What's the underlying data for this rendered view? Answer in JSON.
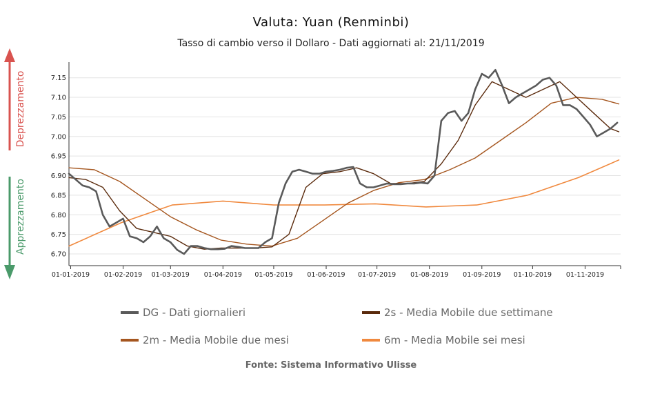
{
  "page": {
    "title": "Valuta: Yuan (Renminbi)",
    "subtitle": "Tasso di cambio verso il Dollaro - Dati aggiornati al: 21/11/2019",
    "side_up": "Deprezzamento",
    "side_down": "Apprezzamento",
    "source": "Fonte: Sistema Informativo Ulisse",
    "colors": {
      "up_arrow": "#d9534f",
      "down_arrow": "#4a9a6a"
    }
  },
  "chart_data": {
    "type": "line",
    "title": "Valuta: Yuan (Renminbi)",
    "subtitle": "Tasso di cambio verso il Dollaro - Dati aggiornati al: 21/11/2019",
    "xlabel": "",
    "ylabel": "",
    "ylim": [
      6.67,
      7.19
    ],
    "xlim": [
      "2018-12-31",
      "2019-11-22"
    ],
    "yticks": [
      6.7,
      6.75,
      6.8,
      6.85,
      6.9,
      6.95,
      7.0,
      7.05,
      7.1,
      7.15
    ],
    "xtick_labels": [
      {
        "date": "2019-01-01",
        "label": "01-01-2019"
      },
      {
        "date": "2019-02-01",
        "label": "01-02-2019"
      },
      {
        "date": "2019-03-01",
        "label": "01-03-2019"
      },
      {
        "date": "2019-04-01",
        "label": "01-04-2019"
      },
      {
        "date": "2019-05-01",
        "label": "01-05-2019"
      },
      {
        "date": "2019-06-01",
        "label": "01-06-2019"
      },
      {
        "date": "2019-07-01",
        "label": "01-07-2019"
      },
      {
        "date": "2019-08-01",
        "label": "01-08-2019"
      },
      {
        "date": "2019-09-01",
        "label": "01-09-2019"
      },
      {
        "date": "2019-10-01",
        "label": "01-10-2019"
      },
      {
        "date": "2019-11-01",
        "label": "01-11-2019"
      }
    ],
    "grid": "horizontal",
    "legend_position": "bottom",
    "series": [
      {
        "name": "DG - Dati giornalieri",
        "color": "#5a5a5a",
        "x": [
          "2018-12-31",
          "2019-01-04",
          "2019-01-08",
          "2019-01-12",
          "2019-01-16",
          "2019-01-20",
          "2019-01-24",
          "2019-01-28",
          "2019-02-01",
          "2019-02-05",
          "2019-02-09",
          "2019-02-13",
          "2019-02-17",
          "2019-02-21",
          "2019-02-25",
          "2019-03-01",
          "2019-03-05",
          "2019-03-09",
          "2019-03-13",
          "2019-03-17",
          "2019-03-21",
          "2019-03-25",
          "2019-03-29",
          "2019-04-02",
          "2019-04-06",
          "2019-04-10",
          "2019-04-14",
          "2019-04-18",
          "2019-04-22",
          "2019-04-26",
          "2019-04-30",
          "2019-05-04",
          "2019-05-08",
          "2019-05-12",
          "2019-05-16",
          "2019-05-20",
          "2019-05-24",
          "2019-05-28",
          "2019-06-01",
          "2019-06-05",
          "2019-06-09",
          "2019-06-13",
          "2019-06-17",
          "2019-06-21",
          "2019-06-25",
          "2019-06-29",
          "2019-07-03",
          "2019-07-07",
          "2019-07-11",
          "2019-07-15",
          "2019-07-19",
          "2019-07-23",
          "2019-07-27",
          "2019-07-31",
          "2019-08-04",
          "2019-08-08",
          "2019-08-12",
          "2019-08-16",
          "2019-08-20",
          "2019-08-24",
          "2019-08-28",
          "2019-09-01",
          "2019-09-05",
          "2019-09-09",
          "2019-09-13",
          "2019-09-17",
          "2019-09-21",
          "2019-09-25",
          "2019-09-29",
          "2019-10-03",
          "2019-10-07",
          "2019-10-11",
          "2019-10-15",
          "2019-10-19",
          "2019-10-23",
          "2019-10-27",
          "2019-10-31",
          "2019-11-04",
          "2019-11-08",
          "2019-11-12",
          "2019-11-16",
          "2019-11-20"
        ],
        "values": [
          6.905,
          6.89,
          6.875,
          6.87,
          6.86,
          6.8,
          6.77,
          6.78,
          6.79,
          6.745,
          6.74,
          6.73,
          6.745,
          6.77,
          6.74,
          6.73,
          6.71,
          6.7,
          6.72,
          6.72,
          6.715,
          6.712,
          6.712,
          6.713,
          6.72,
          6.718,
          6.715,
          6.715,
          6.715,
          6.73,
          6.74,
          6.83,
          6.88,
          6.91,
          6.915,
          6.91,
          6.905,
          6.905,
          6.91,
          6.912,
          6.915,
          6.92,
          6.922,
          6.88,
          6.87,
          6.87,
          6.875,
          6.88,
          6.878,
          6.878,
          6.88,
          6.88,
          6.882,
          6.88,
          6.9,
          7.04,
          7.06,
          7.065,
          7.04,
          7.06,
          7.12,
          7.16,
          7.15,
          7.17,
          7.13,
          7.085,
          7.1,
          7.11,
          7.12,
          7.13,
          7.145,
          7.15,
          7.13,
          7.08,
          7.08,
          7.07,
          7.05,
          7.03,
          7.0,
          7.01,
          7.02,
          7.035
        ]
      },
      {
        "name": "2s - Media Mobile due settimane",
        "color": "#5a2a0c",
        "x": [
          "2018-12-31",
          "2019-01-10",
          "2019-01-20",
          "2019-01-30",
          "2019-02-09",
          "2019-02-19",
          "2019-03-01",
          "2019-03-11",
          "2019-03-21",
          "2019-03-31",
          "2019-04-10",
          "2019-04-20",
          "2019-04-30",
          "2019-05-10",
          "2019-05-20",
          "2019-05-30",
          "2019-06-09",
          "2019-06-19",
          "2019-06-29",
          "2019-07-09",
          "2019-07-19",
          "2019-07-29",
          "2019-08-08",
          "2019-08-18",
          "2019-08-28",
          "2019-09-07",
          "2019-09-17",
          "2019-09-27",
          "2019-10-07",
          "2019-10-17",
          "2019-10-27",
          "2019-11-06",
          "2019-11-16",
          "2019-11-21"
        ],
        "values": [
          6.895,
          6.89,
          6.87,
          6.81,
          6.765,
          6.755,
          6.745,
          6.72,
          6.712,
          6.715,
          6.715,
          6.715,
          6.718,
          6.75,
          6.87,
          6.905,
          6.91,
          6.92,
          6.905,
          6.88,
          6.88,
          6.885,
          6.93,
          6.99,
          7.08,
          7.14,
          7.12,
          7.1,
          7.12,
          7.14,
          7.1,
          7.06,
          7.02,
          7.012
        ]
      },
      {
        "name": "2m - Media Mobile due mesi",
        "color": "#a5561f",
        "x": [
          "2018-12-31",
          "2019-01-15",
          "2019-01-30",
          "2019-02-14",
          "2019-03-01",
          "2019-03-16",
          "2019-03-31",
          "2019-04-15",
          "2019-04-30",
          "2019-05-15",
          "2019-05-30",
          "2019-06-14",
          "2019-06-29",
          "2019-07-14",
          "2019-07-29",
          "2019-08-13",
          "2019-08-28",
          "2019-09-12",
          "2019-09-27",
          "2019-10-12",
          "2019-10-27",
          "2019-11-11",
          "2019-11-21"
        ],
        "values": [
          6.92,
          6.915,
          6.885,
          6.84,
          6.795,
          6.762,
          6.735,
          6.725,
          6.72,
          6.74,
          6.785,
          6.83,
          6.862,
          6.882,
          6.89,
          6.915,
          6.945,
          6.99,
          7.035,
          7.085,
          7.1,
          7.095,
          7.083
        ]
      },
      {
        "name": "6m - Media Mobile sei mesi",
        "color": "#f0893e",
        "x": [
          "2018-12-31",
          "2019-01-31",
          "2019-03-02",
          "2019-04-01",
          "2019-05-01",
          "2019-05-31",
          "2019-06-30",
          "2019-07-30",
          "2019-08-29",
          "2019-09-28",
          "2019-10-28",
          "2019-11-21"
        ],
        "values": [
          6.72,
          6.78,
          6.825,
          6.835,
          6.825,
          6.825,
          6.828,
          6.82,
          6.825,
          6.85,
          6.895,
          6.94
        ]
      }
    ]
  }
}
